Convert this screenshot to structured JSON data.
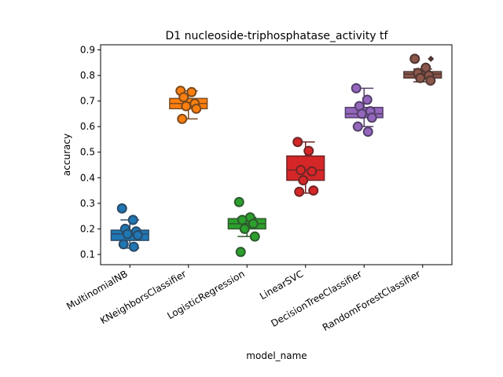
{
  "chart_data": {
    "type": "box",
    "title": "D1 nucleoside-triphosphatase_activity tf",
    "xlabel": "model_name",
    "ylabel": "accuracy",
    "ylim": [
      0.06,
      0.92
    ],
    "yticks": [
      0.1,
      0.2,
      0.3,
      0.4,
      0.5,
      0.6,
      0.7,
      0.8,
      0.9
    ],
    "ytick_labels": [
      "0.1",
      "0.2",
      "0.3",
      "0.4",
      "0.5",
      "0.6",
      "0.7",
      "0.8",
      "0.9"
    ],
    "grid": false,
    "categories": [
      "MultinomialNB",
      "KNeighborsClassifier",
      "LogisticRegression",
      "LinearSVC",
      "DecisionTreeClassifier",
      "RandomForestClassifier"
    ],
    "series": [
      {
        "category": "MultinomialNB",
        "color": "#1f77b4",
        "edge": "#2b4a66",
        "box": {
          "whislo": 0.125,
          "q1": 0.155,
          "median": 0.18,
          "q3": 0.195,
          "whishi": 0.235
        },
        "points": [
          0.28,
          0.235,
          0.2,
          0.19,
          0.18,
          0.175,
          0.14,
          0.13
        ],
        "fliers": []
      },
      {
        "category": "KNeighborsClassifier",
        "color": "#ff7f0e",
        "edge": "#7a4a1e",
        "box": {
          "whislo": 0.63,
          "q1": 0.67,
          "median": 0.69,
          "q3": 0.71,
          "whishi": 0.74
        },
        "points": [
          0.74,
          0.735,
          0.715,
          0.69,
          0.68,
          0.67,
          0.63
        ],
        "fliers": []
      },
      {
        "category": "LogisticRegression",
        "color": "#2ca02c",
        "edge": "#2e5a2e",
        "box": {
          "whislo": 0.17,
          "q1": 0.2,
          "median": 0.22,
          "q3": 0.24,
          "whishi": 0.245
        },
        "points": [
          0.305,
          0.245,
          0.235,
          0.22,
          0.2,
          0.17,
          0.11
        ],
        "fliers": []
      },
      {
        "category": "LinearSVC",
        "color": "#d62728",
        "edge": "#6e2526",
        "box": {
          "whislo": 0.34,
          "q1": 0.39,
          "median": 0.43,
          "q3": 0.485,
          "whishi": 0.54
        },
        "points": [
          0.54,
          0.505,
          0.43,
          0.425,
          0.39,
          0.35,
          0.345
        ],
        "fliers": []
      },
      {
        "category": "DecisionTreeClassifier",
        "color": "#9467bd",
        "edge": "#53406a",
        "box": {
          "whislo": 0.6,
          "q1": 0.635,
          "median": 0.65,
          "q3": 0.675,
          "whishi": 0.75
        },
        "points": [
          0.75,
          0.705,
          0.68,
          0.66,
          0.65,
          0.635,
          0.6,
          0.58
        ],
        "fliers": []
      },
      {
        "category": "RandomForestClassifier",
        "color": "#8c564b",
        "edge": "#4e3632",
        "box": {
          "whislo": 0.775,
          "q1": 0.79,
          "median": 0.805,
          "q3": 0.815,
          "whishi": 0.825
        },
        "points": [
          0.865,
          0.83,
          0.81,
          0.8,
          0.79,
          0.78
        ],
        "fliers": [
          0.865
        ]
      }
    ]
  }
}
